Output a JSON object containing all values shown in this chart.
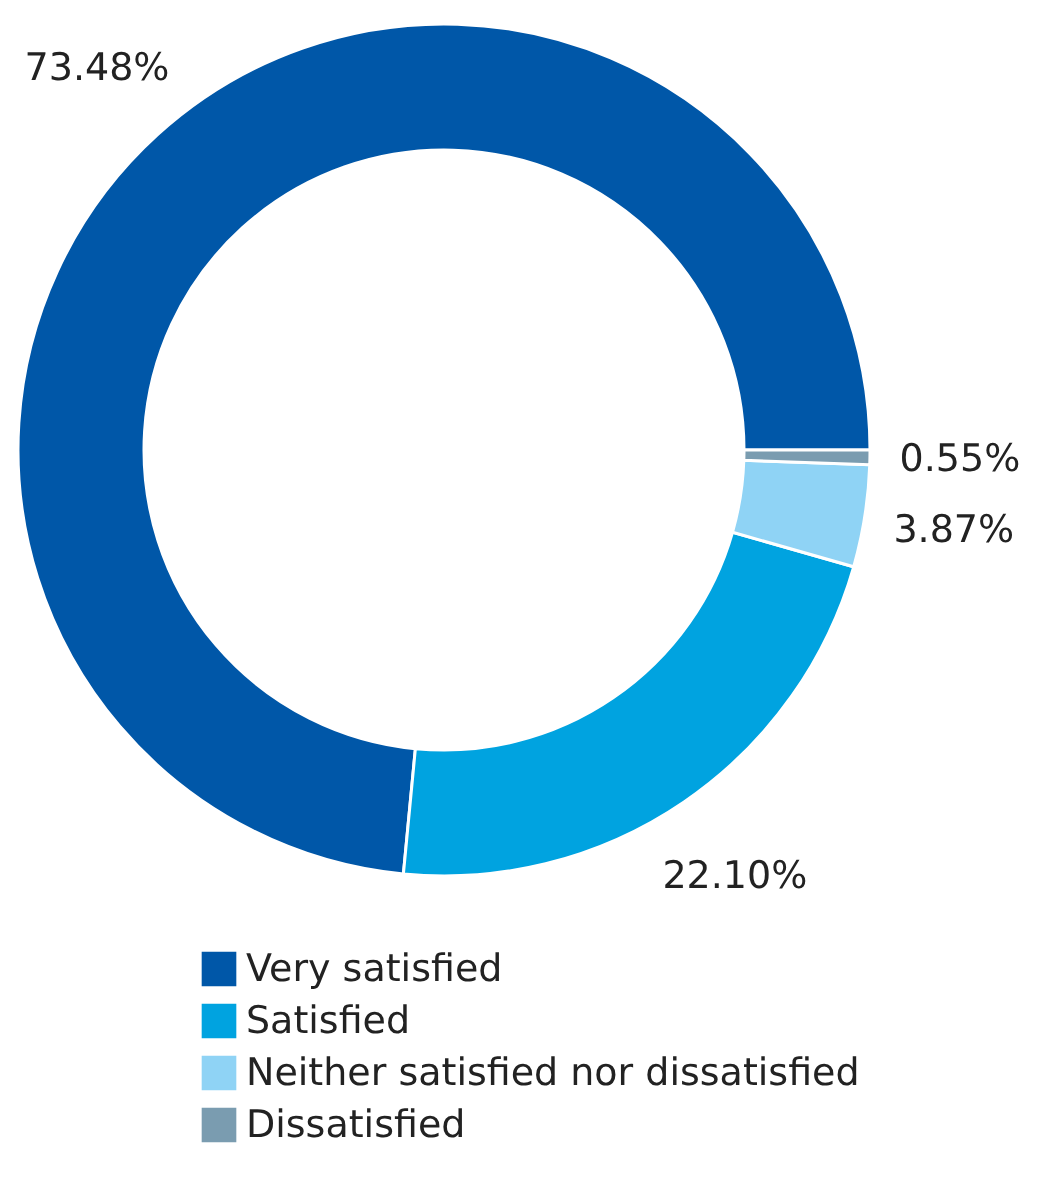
{
  "chart_data": {
    "type": "donut",
    "categories": [
      "Very satisfied",
      "Satisfied",
      "Neither satisfied nor dissatisfied",
      "Dissatisfied"
    ],
    "values": [
      73.48,
      22.1,
      3.87,
      0.55
    ],
    "colors": [
      "#0057a8",
      "#00a3e0",
      "#8fd3f5",
      "#7a9cb0"
    ],
    "value_labels": [
      "73.48%",
      "22.10%",
      "3.87%",
      "0.55%"
    ],
    "legend": "bottom"
  }
}
